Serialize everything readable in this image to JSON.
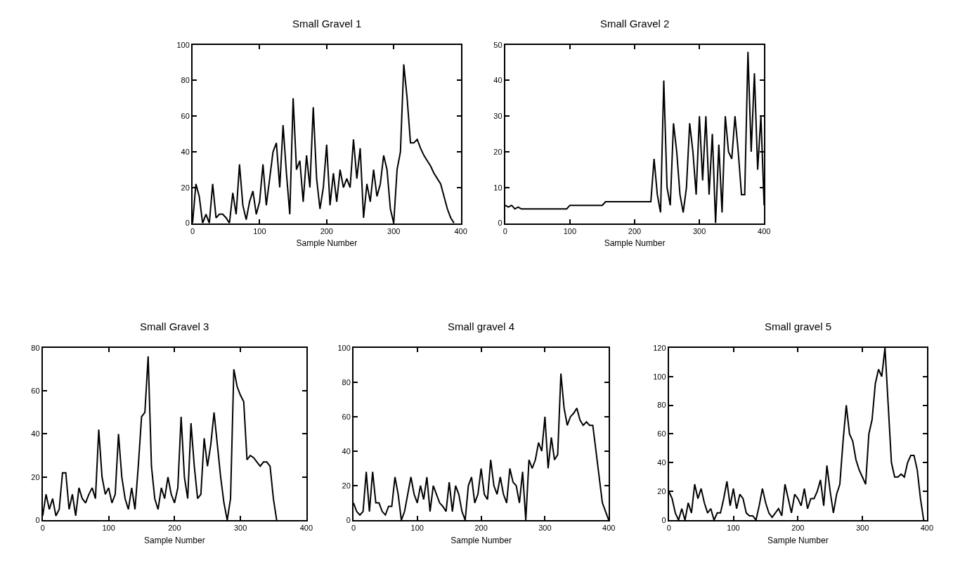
{
  "chart_data": [
    {
      "type": "line",
      "title": "Small Gravel 1",
      "xlabel": "Sample Number",
      "xlim": [
        0,
        400
      ],
      "xticks": [
        0,
        100,
        200,
        300,
        400
      ],
      "ylim": [
        0,
        100
      ],
      "yticks": [
        0,
        20,
        40,
        60,
        80,
        100
      ],
      "series": [
        {
          "color": "#000000",
          "x": [
            0,
            5,
            10,
            15,
            20,
            25,
            30,
            35,
            40,
            45,
            50,
            55,
            60,
            65,
            70,
            75,
            80,
            85,
            90,
            95,
            100,
            105,
            110,
            115,
            120,
            125,
            130,
            135,
            140,
            145,
            150,
            155,
            160,
            165,
            170,
            175,
            180,
            185,
            190,
            195,
            200,
            205,
            210,
            215,
            220,
            225,
            230,
            235,
            240,
            245,
            250,
            255,
            260,
            265,
            270,
            275,
            280,
            285,
            290,
            295,
            300,
            305,
            310,
            315,
            320,
            325,
            330,
            335,
            340,
            345,
            350,
            355,
            360,
            365,
            370,
            375,
            380,
            385,
            390
          ],
          "values": [
            0,
            22,
            15,
            0,
            5,
            0,
            22,
            3,
            5,
            5,
            3,
            0,
            17,
            5,
            33,
            10,
            2,
            12,
            18,
            5,
            12,
            33,
            10,
            25,
            40,
            45,
            20,
            55,
            28,
            5,
            70,
            30,
            35,
            12,
            38,
            20,
            65,
            25,
            8,
            20,
            44,
            10,
            28,
            12,
            30,
            20,
            25,
            20,
            47,
            25,
            42,
            3,
            22,
            12,
            30,
            15,
            22,
            38,
            30,
            8,
            0,
            30,
            40,
            89,
            70,
            45,
            45,
            47,
            42,
            38,
            35,
            32,
            28,
            25,
            22,
            15,
            8,
            3,
            0
          ]
        }
      ]
    },
    {
      "type": "line",
      "title": "Small Gravel 2",
      "xlabel": "Sample Number",
      "xlim": [
        0,
        400
      ],
      "xticks": [
        0,
        100,
        200,
        300,
        400
      ],
      "ylim": [
        0,
        50
      ],
      "yticks": [
        0,
        10,
        20,
        30,
        40,
        50
      ],
      "series": [
        {
          "color": "#000000",
          "x": [
            0,
            5,
            10,
            15,
            20,
            25,
            30,
            35,
            40,
            45,
            50,
            55,
            60,
            65,
            70,
            75,
            80,
            85,
            90,
            95,
            100,
            105,
            110,
            115,
            120,
            125,
            130,
            135,
            140,
            145,
            150,
            155,
            160,
            165,
            170,
            175,
            180,
            185,
            190,
            195,
            200,
            205,
            210,
            215,
            220,
            225,
            230,
            235,
            240,
            245,
            250,
            255,
            260,
            265,
            270,
            275,
            280,
            285,
            290,
            295,
            300,
            305,
            310,
            315,
            320,
            325,
            330,
            335,
            340,
            345,
            350,
            355,
            360,
            365,
            370,
            375,
            380,
            385,
            390,
            395,
            400
          ],
          "values": [
            5,
            4.5,
            5,
            4,
            4.5,
            4,
            4,
            4,
            4,
            4,
            4,
            4,
            4,
            4,
            4,
            4,
            4,
            4,
            4,
            4,
            5,
            5,
            5,
            5,
            5,
            5,
            5,
            5,
            5,
            5,
            5,
            6,
            6,
            6,
            6,
            6,
            6,
            6,
            6,
            6,
            6,
            6,
            6,
            6,
            6,
            6,
            18,
            8,
            3,
            40,
            10,
            5,
            28,
            20,
            8,
            3,
            10,
            28,
            20,
            8,
            30,
            12,
            30,
            8,
            25,
            0,
            22,
            3,
            30,
            20,
            18,
            30,
            20,
            8,
            8,
            48,
            20,
            42,
            15,
            30,
            5
          ]
        }
      ]
    },
    {
      "type": "line",
      "title": "Small Gravel 3",
      "xlabel": "Sample Number",
      "xlim": [
        0,
        400
      ],
      "xticks": [
        0,
        100,
        200,
        300,
        400
      ],
      "ylim": [
        0,
        80
      ],
      "yticks": [
        0,
        20,
        40,
        60,
        80
      ],
      "series": [
        {
          "color": "#000000",
          "x": [
            0,
            5,
            10,
            15,
            20,
            25,
            30,
            35,
            40,
            45,
            50,
            55,
            60,
            65,
            70,
            75,
            80,
            85,
            90,
            95,
            100,
            105,
            110,
            115,
            120,
            125,
            130,
            135,
            140,
            145,
            150,
            155,
            160,
            165,
            170,
            175,
            180,
            185,
            190,
            195,
            200,
            205,
            210,
            215,
            220,
            225,
            230,
            235,
            240,
            245,
            250,
            255,
            260,
            265,
            270,
            275,
            280,
            285,
            290,
            295,
            300,
            305,
            310,
            315,
            320,
            325,
            330,
            335,
            340,
            345,
            350,
            355
          ],
          "values": [
            2,
            12,
            5,
            10,
            2,
            5,
            22,
            22,
            5,
            12,
            2,
            15,
            10,
            8,
            12,
            15,
            10,
            42,
            20,
            12,
            15,
            8,
            12,
            40,
            20,
            10,
            5,
            15,
            5,
            25,
            48,
            50,
            76,
            25,
            10,
            5,
            15,
            10,
            20,
            12,
            8,
            15,
            48,
            20,
            10,
            45,
            25,
            10,
            12,
            38,
            25,
            35,
            50,
            35,
            20,
            8,
            0,
            10,
            70,
            62,
            58,
            55,
            28,
            30,
            29,
            27,
            25,
            27,
            27,
            25,
            10,
            0
          ]
        }
      ]
    },
    {
      "type": "line",
      "title": "Small gravel 4",
      "xlabel": "Sample Number",
      "xlim": [
        0,
        400
      ],
      "xticks": [
        0,
        100,
        200,
        300,
        400
      ],
      "ylim": [
        0,
        100
      ],
      "yticks": [
        0,
        20,
        40,
        60,
        80,
        100
      ],
      "series": [
        {
          "color": "#000000",
          "x": [
            0,
            5,
            10,
            15,
            20,
            25,
            30,
            35,
            40,
            45,
            50,
            55,
            60,
            65,
            70,
            75,
            80,
            85,
            90,
            95,
            100,
            105,
            110,
            115,
            120,
            125,
            130,
            135,
            140,
            145,
            150,
            155,
            160,
            165,
            170,
            175,
            180,
            185,
            190,
            195,
            200,
            205,
            210,
            215,
            220,
            225,
            230,
            235,
            240,
            245,
            250,
            255,
            260,
            265,
            270,
            275,
            280,
            285,
            290,
            295,
            300,
            305,
            310,
            315,
            320,
            325,
            330,
            335,
            340,
            345,
            350,
            355,
            360,
            365,
            370,
            375,
            380,
            385,
            390,
            395,
            400
          ],
          "values": [
            10,
            5,
            3,
            5,
            28,
            5,
            28,
            10,
            10,
            5,
            3,
            8,
            8,
            25,
            15,
            0,
            5,
            15,
            25,
            15,
            10,
            20,
            12,
            25,
            5,
            20,
            15,
            10,
            8,
            5,
            22,
            5,
            20,
            15,
            5,
            0,
            20,
            25,
            10,
            15,
            30,
            15,
            12,
            35,
            20,
            15,
            25,
            15,
            10,
            30,
            22,
            20,
            10,
            28,
            0,
            35,
            30,
            35,
            45,
            40,
            60,
            30,
            48,
            35,
            38,
            85,
            65,
            55,
            60,
            62,
            65,
            58,
            55,
            57,
            55,
            55,
            40,
            25,
            10,
            5,
            0
          ]
        }
      ]
    },
    {
      "type": "line",
      "title": "Small gravel 5",
      "xlabel": "Sample Number",
      "xlim": [
        0,
        400
      ],
      "xticks": [
        0,
        100,
        200,
        300,
        400
      ],
      "ylim": [
        0,
        120
      ],
      "yticks": [
        0,
        20,
        40,
        60,
        80,
        100,
        120
      ],
      "series": [
        {
          "color": "#000000",
          "x": [
            0,
            5,
            10,
            15,
            20,
            25,
            30,
            35,
            40,
            45,
            50,
            55,
            60,
            65,
            70,
            75,
            80,
            85,
            90,
            95,
            100,
            105,
            110,
            115,
            120,
            125,
            130,
            135,
            140,
            145,
            150,
            155,
            160,
            165,
            170,
            175,
            180,
            185,
            190,
            195,
            200,
            205,
            210,
            215,
            220,
            225,
            230,
            235,
            240,
            245,
            250,
            255,
            260,
            265,
            270,
            275,
            280,
            285,
            290,
            295,
            300,
            305,
            310,
            315,
            320,
            325,
            330,
            335,
            340,
            345,
            350,
            355,
            360,
            365,
            370,
            375,
            380,
            385,
            390,
            395
          ],
          "values": [
            20,
            15,
            5,
            0,
            8,
            0,
            12,
            5,
            25,
            15,
            22,
            12,
            5,
            8,
            0,
            5,
            5,
            15,
            27,
            10,
            22,
            8,
            18,
            15,
            5,
            3,
            3,
            0,
            10,
            22,
            12,
            5,
            2,
            5,
            8,
            3,
            25,
            15,
            5,
            18,
            15,
            10,
            22,
            8,
            15,
            15,
            20,
            28,
            10,
            38,
            20,
            5,
            18,
            25,
            55,
            80,
            60,
            55,
            42,
            35,
            30,
            25,
            60,
            70,
            95,
            105,
            100,
            120,
            80,
            40,
            30,
            30,
            32,
            30,
            40,
            45,
            45,
            35,
            15,
            0
          ]
        }
      ]
    }
  ]
}
